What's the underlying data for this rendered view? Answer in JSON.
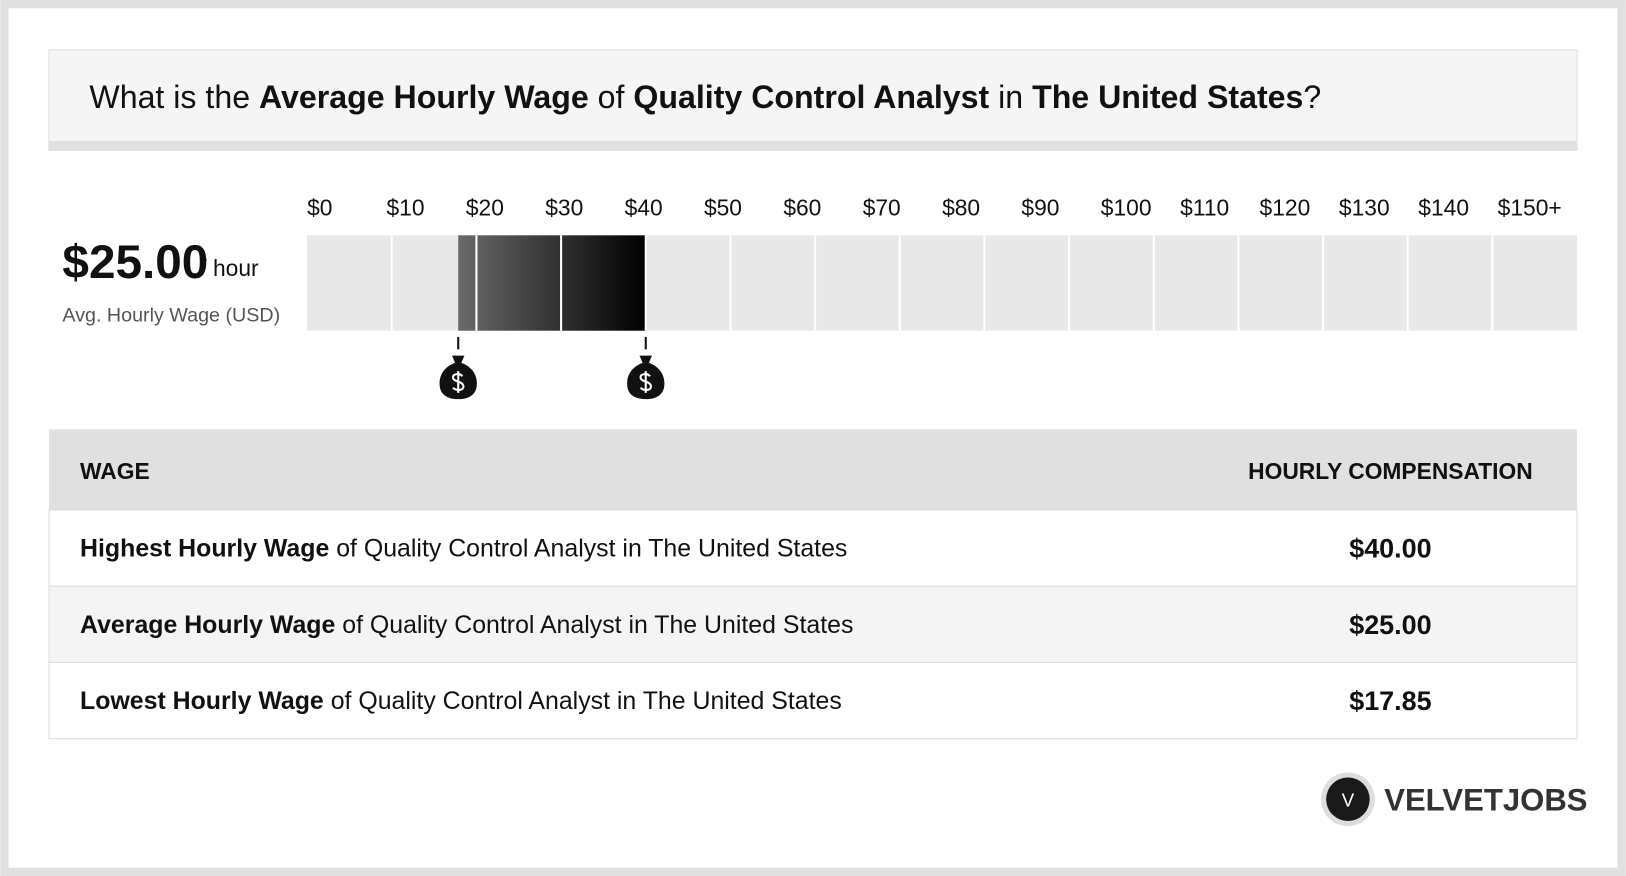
{
  "header": {
    "title": [
      "What is the",
      "Average Hourly Wage",
      "of",
      "Quality Control Analyst",
      "in",
      "The United States",
      "?"
    ]
  },
  "summary": {
    "value": "$25.00",
    "unit": "/ hour",
    "caption": "Avg. Hourly Wage (USD)"
  },
  "scale": {
    "xlim": [
      0,
      150
    ],
    "ticks": [
      {
        "value": 0,
        "label": "$0"
      },
      {
        "value": 10,
        "label": "$10"
      },
      {
        "value": 20,
        "label": "$20"
      },
      {
        "value": 30,
        "label": "$30"
      },
      {
        "value": 40,
        "label": "$40"
      },
      {
        "value": 50,
        "label": "$50"
      },
      {
        "value": 60,
        "label": "$60"
      },
      {
        "value": 70,
        "label": "$70"
      },
      {
        "value": 80,
        "label": "$80"
      },
      {
        "value": 90,
        "label": "$90"
      },
      {
        "value": 100,
        "label": "$100"
      },
      {
        "value": 110,
        "label": "$110"
      },
      {
        "value": 120,
        "label": "$120"
      },
      {
        "value": 130,
        "label": "$130"
      },
      {
        "value": 140,
        "label": "$140"
      },
      {
        "value": 150,
        "label": "$150+"
      }
    ]
  },
  "table": {
    "columns": [
      "WAGE",
      "HOURLY COMPENSATION"
    ],
    "rows": [
      {
        "bold": "Highest Hourly Wage",
        "text": "of Quality Control Analyst in The United States",
        "value": 40,
        "label": "$40.00"
      },
      {
        "bold": "Average Hourly Wage",
        "text": "of Quality Control Analyst in The United States",
        "value": 25,
        "label": "$25.00"
      },
      {
        "bold": "Lowest Hourly Wage",
        "text": "of Quality Control Analyst in The United States",
        "value": 17.85,
        "label": "$17.85"
      }
    ]
  },
  "logo": {
    "initial": "V",
    "name": "VELVETJOBS"
  }
}
